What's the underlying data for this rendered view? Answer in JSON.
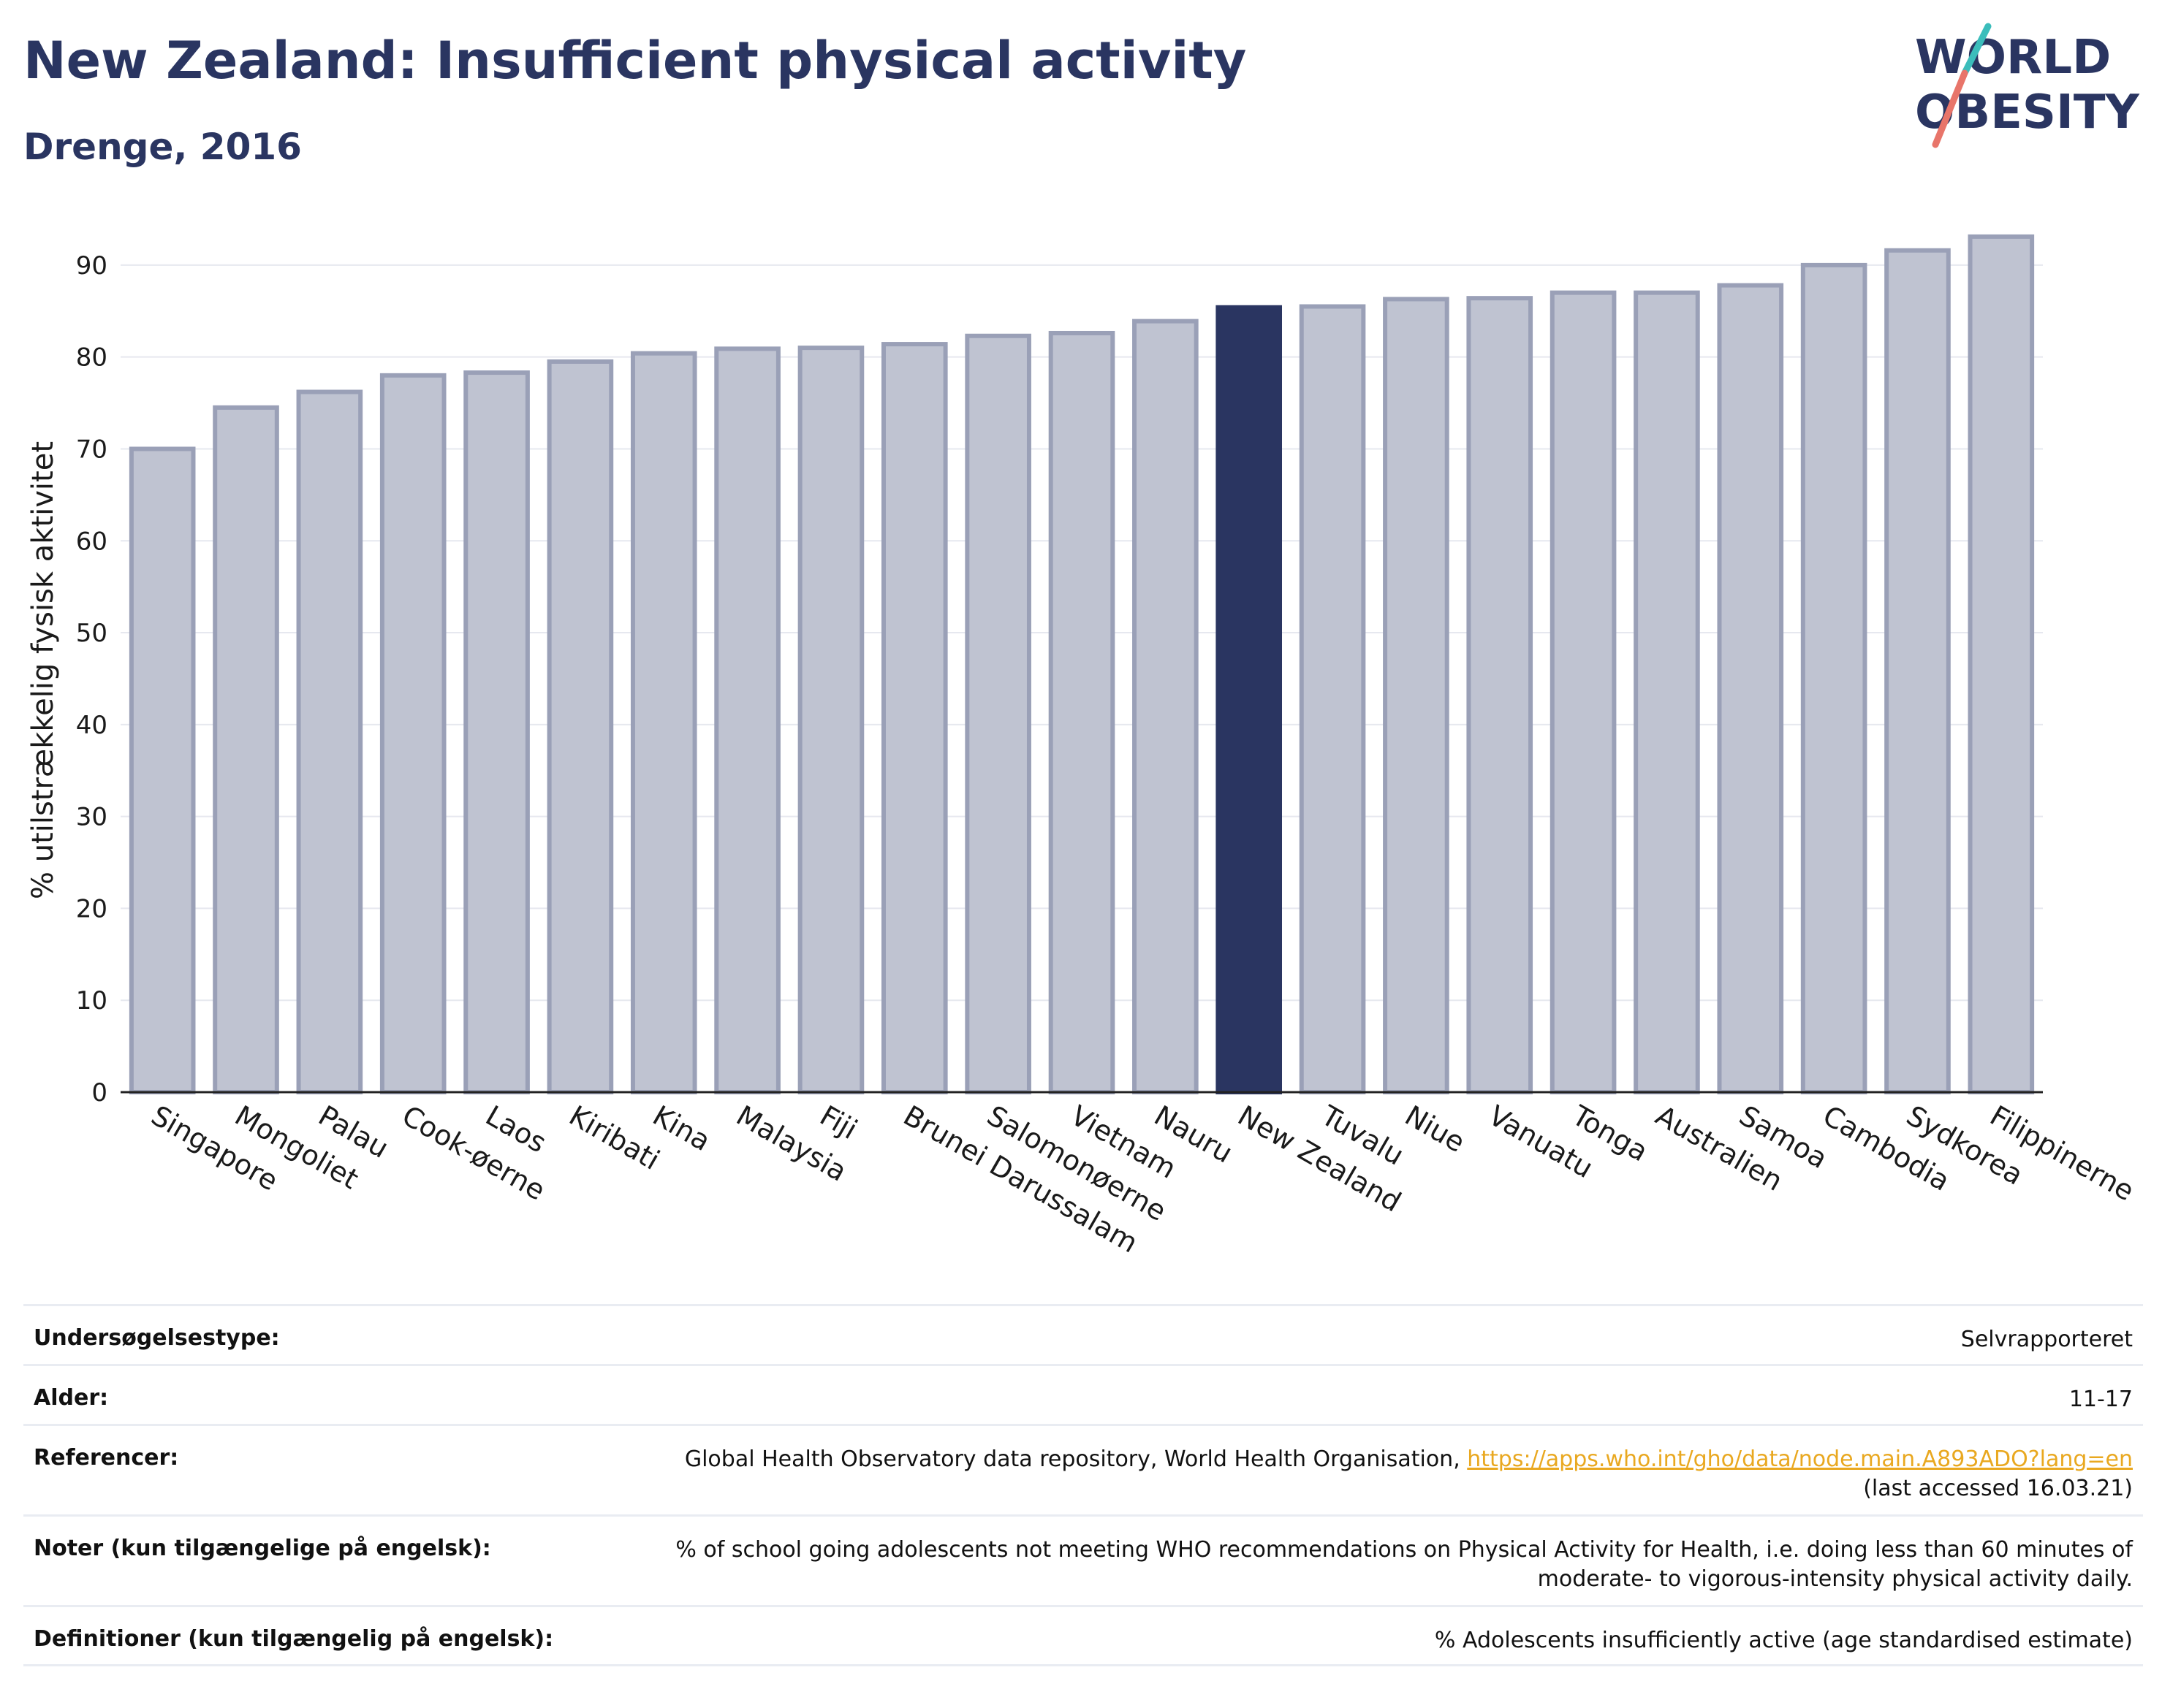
{
  "header": {
    "title": "New Zealand: Insufficient physical activity",
    "subtitle": "Drenge, 2016",
    "logo_line1": "WORLD",
    "logo_line2": "OBESITY"
  },
  "chart_data": {
    "type": "bar",
    "categories": [
      "Singapore",
      "Mongoliet",
      "Palau",
      "Cook-øerne",
      "Laos",
      "Kiribati",
      "Kina",
      "Malaysia",
      "Fiji",
      "Brunei Darussalam",
      "Salomonøerne",
      "Vietnam",
      "Nauru",
      "New Zealand",
      "Tuvalu",
      "Niue",
      "Vanuatu",
      "Tonga",
      "Australien",
      "Samoa",
      "Cambodia",
      "Sydkorea",
      "Filippinerne"
    ],
    "values": [
      70.0,
      74.5,
      76.2,
      78.0,
      78.3,
      79.5,
      80.4,
      80.9,
      81.0,
      81.4,
      82.3,
      82.6,
      83.9,
      85.4,
      85.5,
      86.3,
      86.4,
      87.0,
      87.0,
      87.8,
      90.0,
      91.6,
      93.1
    ],
    "highlight": "New Zealand",
    "ylabel": "% utilstrækkelig fysisk aktivitet",
    "xlabel": "",
    "ylim": [
      0,
      95
    ],
    "yticks": [
      0,
      10,
      20,
      30,
      40,
      50,
      60,
      70,
      80,
      90
    ],
    "colors": {
      "bar": "#bfc3d1",
      "bar_edge": "#9aa0b7",
      "highlight": "#2a3561"
    },
    "grid": true
  },
  "info": [
    {
      "label": "Undersøgelsestype:",
      "value": "Selvrapporteret"
    },
    {
      "label": "Alder:",
      "value": "11-17"
    },
    {
      "label": "Referencer:",
      "value_prefix": "Global Health Observatory data repository, World Health Organisation, ",
      "link": "https://apps.who.int/gho/data/node.main.A893ADO?lang=en",
      "value_suffix": "(last accessed 16.03.21)"
    },
    {
      "label": "Noter (kun tilgængelige på engelsk):",
      "value_line1": "% of school going adolescents not meeting WHO recommendations on Physical Activity for Health, i.e. doing less than 60 minutes of",
      "value_line2": "moderate- to vigorous-intensity physical activity daily."
    },
    {
      "label": "Definitioner (kun tilgængelig på engelsk):",
      "value": "% Adolescents insufficiently active (age standardised estimate)"
    }
  ]
}
